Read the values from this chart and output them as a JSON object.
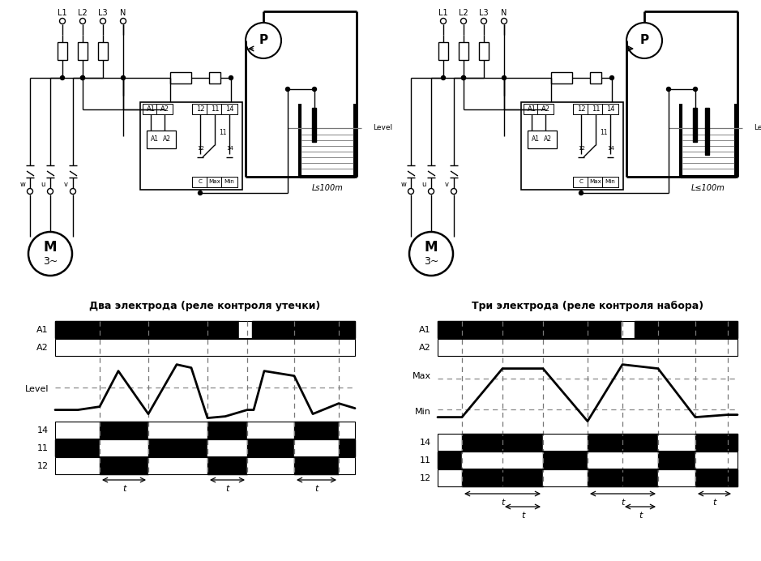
{
  "bg_color": "#ffffff",
  "title_left": "Два электрода (реле контроля утечки)",
  "title_right": "Три электрода (реле контроля набора)",
  "left_labels": [
    "A1",
    "A2",
    "Level",
    "14",
    "11",
    "12"
  ],
  "right_labels": [
    "A1",
    "A2",
    "Max",
    "Min",
    "14",
    "11",
    "12"
  ],
  "black": "#000000",
  "white": "#ffffff",
  "gray": "#888888"
}
